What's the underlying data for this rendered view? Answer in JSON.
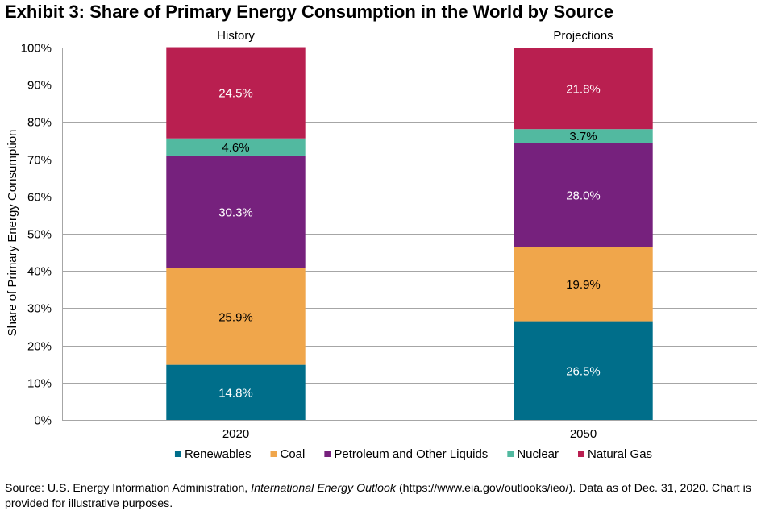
{
  "chart_data": {
    "type": "bar",
    "stacked": true,
    "title": "Exhibit 3: Share of Primary Energy Consumption in the World by Source",
    "xlabel": "",
    "ylabel": "Share of Primary Energy Consumption",
    "ylim": [
      0,
      100
    ],
    "yticks": [
      "0%",
      "10%",
      "20%",
      "30%",
      "40%",
      "50%",
      "60%",
      "70%",
      "80%",
      "90%",
      "100%"
    ],
    "grid": true,
    "legend_position": "bottom",
    "group_labels": [
      "History",
      "Projections"
    ],
    "categories": [
      "2020",
      "2050"
    ],
    "series": [
      {
        "name": "Renewables",
        "color": "#006e8a",
        "label_color": "#ffffff",
        "values": [
          14.8,
          26.5
        ],
        "labels": [
          "14.8%",
          "26.5%"
        ]
      },
      {
        "name": "Coal",
        "color": "#f0a64b",
        "label_color": "#000000",
        "values": [
          25.9,
          19.9
        ],
        "labels": [
          "25.9%",
          "19.9%"
        ]
      },
      {
        "name": "Petroleum and Other Liquids",
        "color": "#76217d",
        "label_color": "#ffffff",
        "values": [
          30.3,
          28.0
        ],
        "labels": [
          "30.3%",
          "28.0%"
        ]
      },
      {
        "name": "Nuclear",
        "color": "#52b9a0",
        "label_color": "#000000",
        "values": [
          4.6,
          3.7
        ],
        "labels": [
          "4.6%",
          "3.7%"
        ]
      },
      {
        "name": "Natural Gas",
        "color": "#b91f50",
        "label_color": "#ffffff",
        "values": [
          24.5,
          21.8
        ],
        "labels": [
          "24.5%",
          "21.8%"
        ]
      }
    ]
  },
  "source": {
    "prefix": "Source: U.S. Energy Information Administration, ",
    "italic": "International Energy Outlook",
    "suffix": " (https://www.eia.gov/outlooks/ieo/). Data as of Dec. 31, 2020. Chart is provided for illustrative purposes."
  }
}
